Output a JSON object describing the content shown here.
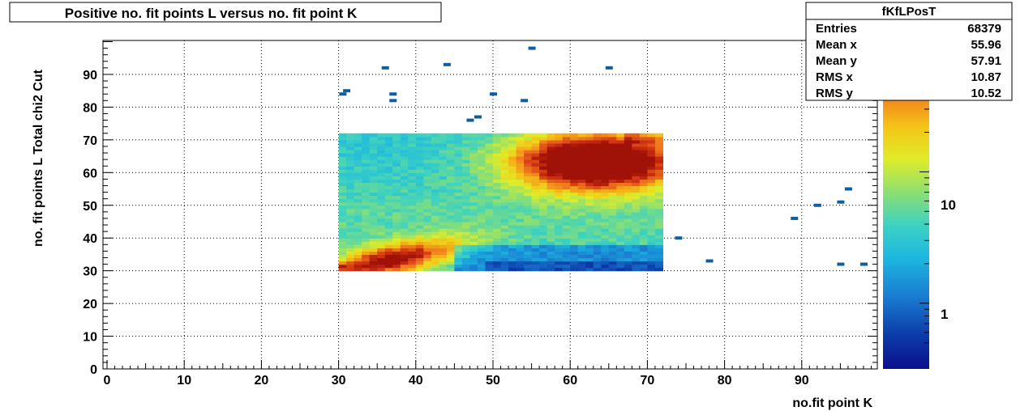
{
  "chart_data": {
    "type": "heatmap",
    "title": "Positive no. fit points L versus no. fit point K",
    "xlabel": "no.fit point K",
    "ylabel": "no. fit points  L  Total chi2 Cut",
    "xlim": [
      0,
      99
    ],
    "ylim": [
      0,
      100
    ],
    "x_ticks": [
      0,
      10,
      20,
      30,
      40,
      50,
      60,
      70,
      80,
      90
    ],
    "y_ticks": [
      0,
      10,
      20,
      30,
      40,
      50,
      60,
      70,
      80,
      90
    ],
    "grid": true,
    "color_scale": "log",
    "colorbar_ticks": [
      "1",
      "10"
    ],
    "main_region": {
      "x_range": [
        30,
        72
      ],
      "y_range": [
        30,
        72
      ],
      "peak": [
        63,
        63
      ]
    },
    "colors": {
      "low": "#0f5fa0",
      "high": "#b71400"
    },
    "isolated_bins": [
      {
        "x": 55,
        "y": 98
      },
      {
        "x": 36,
        "y": 92
      },
      {
        "x": 44,
        "y": 93
      },
      {
        "x": 65,
        "y": 92
      },
      {
        "x": 30.5,
        "y": 84
      },
      {
        "x": 31,
        "y": 85
      },
      {
        "x": 37,
        "y": 84
      },
      {
        "x": 37,
        "y": 82
      },
      {
        "x": 50,
        "y": 84
      },
      {
        "x": 54,
        "y": 82
      },
      {
        "x": 48,
        "y": 77
      },
      {
        "x": 47,
        "y": 76
      },
      {
        "x": 74,
        "y": 40
      },
      {
        "x": 78,
        "y": 33
      },
      {
        "x": 89,
        "y": 46
      },
      {
        "x": 92,
        "y": 50
      },
      {
        "x": 95,
        "y": 51
      },
      {
        "x": 96,
        "y": 55
      },
      {
        "x": 95,
        "y": 32
      },
      {
        "x": 98,
        "y": 32
      }
    ]
  },
  "stats": {
    "title": "fKfLPosT",
    "rows": [
      {
        "label": "Entries",
        "value": "68379"
      },
      {
        "label": "Mean x",
        "value": "55.96"
      },
      {
        "label": "Mean y",
        "value": "57.91"
      },
      {
        "label": "RMS x",
        "value": "10.87"
      },
      {
        "label": "RMS y",
        "value": "10.52"
      }
    ]
  }
}
